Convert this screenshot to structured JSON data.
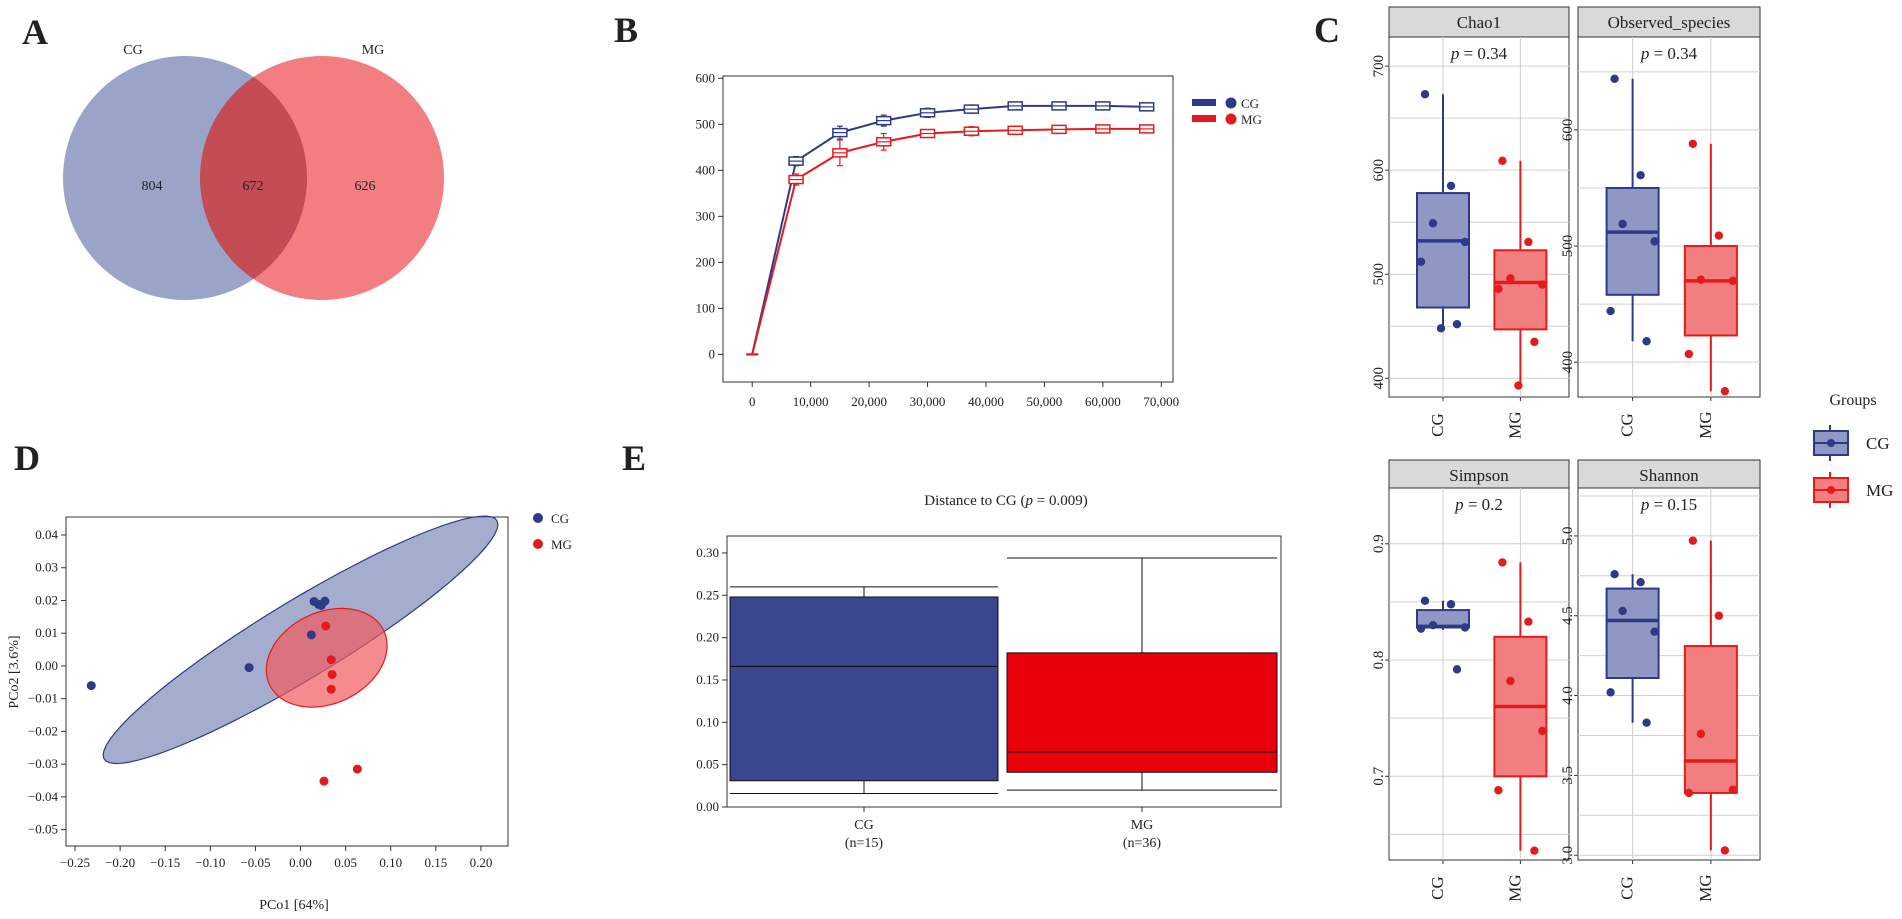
{
  "panels": {
    "A": {
      "letter": "A",
      "type": "venn",
      "sets": [
        {
          "name": "CG",
          "unique": 804,
          "color": "#7e8ab8"
        },
        {
          "name": "MG",
          "unique": 626,
          "color": "#f05a5e"
        }
      ],
      "intersection": 672,
      "intersection_color": "#c0474f"
    },
    "B": {
      "letter": "B",
      "type": "line",
      "xticks": [
        "0",
        "10,000",
        "20,000",
        "30,000",
        "40,000",
        "50,000",
        "60,000",
        "70,000"
      ],
      "xlim": [
        -5000,
        72000
      ],
      "ylim": [
        -60,
        605
      ],
      "yticks": [
        0,
        100,
        200,
        300,
        400,
        500,
        600
      ],
      "series": [
        {
          "name": "CG",
          "color": "#2e3a87",
          "x": [
            0,
            7500,
            15000,
            22500,
            30000,
            37500,
            45000,
            52500,
            60000,
            67500
          ],
          "y": [
            0,
            420,
            482,
            508,
            525,
            533,
            540,
            540,
            540,
            538
          ],
          "err": [
            0,
            10,
            14,
            12,
            10,
            9,
            5,
            5,
            4,
            4
          ]
        },
        {
          "name": "MG",
          "color": "#e41a1c",
          "x": [
            0,
            7500,
            15000,
            22500,
            30000,
            37500,
            45000,
            52500,
            60000,
            67500
          ],
          "y": [
            0,
            380,
            438,
            462,
            480,
            485,
            487,
            489,
            490,
            490
          ],
          "err": [
            0,
            12,
            28,
            18,
            8,
            10,
            6,
            5,
            3,
            3
          ]
        }
      ]
    },
    "C": {
      "letter": "C",
      "type": "boxplot",
      "legend_title": "Groups",
      "groups": [
        {
          "name": "CG",
          "color": "#2e3a87",
          "fill": "#8f97c4"
        },
        {
          "name": "MG",
          "color": "#e41a1c",
          "fill": "#f17f80"
        }
      ],
      "facets": [
        {
          "title": "Chao1",
          "p_text": "p = 0.34",
          "p_prefix": "p",
          "p_value": " = 0.34",
          "ylim": [
            382,
            728
          ],
          "yticks": [
            400,
            500,
            600,
            700
          ],
          "boxes": [
            {
              "group": "CG",
              "min": 448,
              "q1": 468,
              "median": 532,
              "q3": 578,
              "max": 673,
              "points": [
                673,
                585,
                549,
                531,
                512,
                452,
                448
              ]
            },
            {
              "group": "MG",
              "min": 393,
              "q1": 447,
              "median": 492,
              "q3": 523,
              "max": 609,
              "points": [
                609,
                531,
                496,
                490,
                486,
                435,
                393
              ]
            }
          ]
        },
        {
          "title": "Observed_species",
          "p_text": "p = 0.34",
          "p_prefix": "p",
          "p_value": " = 0.34",
          "ylim": [
            370,
            680
          ],
          "yticks": [
            400,
            500,
            600
          ],
          "boxes": [
            {
              "group": "CG",
              "min": 418,
              "q1": 458,
              "median": 512,
              "q3": 550,
              "max": 644,
              "points": [
                644,
                561,
                519,
                504,
                444,
                418
              ]
            },
            {
              "group": "MG",
              "min": 375,
              "q1": 423,
              "median": 470,
              "q3": 500,
              "max": 588,
              "points": [
                588,
                509,
                471,
                470,
                407,
                375
              ]
            }
          ]
        },
        {
          "title": "Simpson",
          "p_text": "p = 0.2",
          "p_prefix": "p",
          "p_value": " = 0.2",
          "ylim": [
            0.628,
            0.948
          ],
          "yticks": [
            0.7,
            0.8,
            0.9
          ],
          "boxes": [
            {
              "group": "CG",
              "min": 0.826,
              "q1": 0.828,
              "median": 0.829,
              "q3": 0.843,
              "max": 0.851,
              "points": [
                0.851,
                0.848,
                0.83,
                0.828,
                0.827,
                0.792
              ]
            },
            {
              "group": "MG",
              "min": 0.636,
              "q1": 0.7,
              "median": 0.76,
              "q3": 0.82,
              "max": 0.884,
              "points": [
                0.884,
                0.833,
                0.782,
                0.739,
                0.688,
                0.636
              ]
            }
          ]
        },
        {
          "title": "Shannon",
          "p_text": "p = 0.15",
          "p_prefix": "p",
          "p_value": " = 0.15",
          "ylim": [
            2.97,
            5.3
          ],
          "yticks": [
            3.0,
            3.5,
            4.0,
            4.5,
            5.0
          ],
          "boxes": [
            {
              "group": "CG",
              "min": 3.83,
              "q1": 4.11,
              "median": 4.47,
              "q3": 4.67,
              "max": 4.76,
              "points": [
                4.76,
                4.71,
                4.53,
                4.4,
                4.02,
                3.83
              ]
            },
            {
              "group": "MG",
              "min": 3.03,
              "q1": 3.39,
              "median": 3.59,
              "q3": 4.31,
              "max": 4.97,
              "points": [
                4.97,
                4.5,
                3.76,
                3.41,
                3.39,
                3.03
              ]
            }
          ]
        }
      ]
    },
    "D": {
      "letter": "D",
      "type": "scatter",
      "xlabel": "PCo1 [64%]",
      "ylabel": "PCo2 [3.6%]",
      "xlim": [
        -0.26,
        0.23
      ],
      "ylim": [
        -0.055,
        0.0455
      ],
      "xticks": [
        -0.25,
        -0.2,
        -0.15,
        -0.1,
        -0.05,
        0.0,
        0.05,
        0.1,
        0.15,
        0.2
      ],
      "xtick_labels": [
        "−0.25",
        "−0.20",
        "−0.15",
        "−0.10",
        "−0.05",
        "0.00",
        "0.05",
        "0.10",
        "0.15",
        "0.20"
      ],
      "yticks": [
        -0.05,
        -0.04,
        -0.03,
        -0.02,
        -0.01,
        0.0,
        0.01,
        0.02,
        0.03,
        0.04
      ],
      "ytick_labels": [
        "−0.05",
        "−0.04",
        "−0.03",
        "−0.02",
        "−0.01",
        "0.00",
        "0.01",
        "0.02",
        "0.03",
        "0.04"
      ],
      "groups": [
        {
          "name": "CG",
          "color": "#2e3a87",
          "ellipse_fill": "#7e8ab8",
          "points": [
            [
              -0.232,
              -0.006
            ],
            [
              -0.057,
              -0.0005
            ],
            [
              0.012,
              0.0095
            ],
            [
              0.015,
              0.0197
            ],
            [
              0.02,
              0.0188
            ],
            [
              0.023,
              0.0185
            ],
            [
              0.027,
              0.0198
            ]
          ],
          "ellipse": {
            "cx": 0.0,
            "cy": 0.008,
            "rx": 0.245,
            "ry": 0.0225,
            "angle_deg": 28.5
          }
        },
        {
          "name": "MG",
          "color": "#e41a1c",
          "ellipse_fill": "#f05a5e",
          "points": [
            [
              0.028,
              0.0122
            ],
            [
              0.034,
              0.0019
            ],
            [
              0.035,
              -0.0026
            ],
            [
              0.034,
              -0.0071
            ],
            [
              0.026,
              -0.0352
            ],
            [
              0.063,
              -0.0315
            ]
          ],
          "ellipse": {
            "cx": 0.029,
            "cy": 0.0025,
            "rx": 0.0545,
            "ry": 0.0185,
            "angle_deg": 83
          }
        }
      ]
    },
    "E": {
      "letter": "E",
      "type": "boxplot",
      "title_prefix": "Distance to CG (",
      "title_p": "p",
      "title_suffix": " = 0.009)",
      "ylim": [
        0.0,
        0.32
      ],
      "yticks": [
        0.0,
        0.05,
        0.1,
        0.15,
        0.2,
        0.25,
        0.3
      ],
      "ytick_labels": [
        "0.00",
        "0.05",
        "0.10",
        "0.15",
        "0.20",
        "0.25",
        "0.30"
      ],
      "boxes": [
        {
          "group": "CG",
          "n_label": "(n=15)",
          "color": "#3b4690",
          "min": 0.016,
          "q1": 0.031,
          "median": 0.166,
          "q3": 0.248,
          "max": 0.26
        },
        {
          "group": "MG",
          "n_label": "(n=36)",
          "color": "#e8000b",
          "min": 0.02,
          "q1": 0.041,
          "median": 0.065,
          "q3": 0.182,
          "max": 0.294
        }
      ]
    }
  }
}
